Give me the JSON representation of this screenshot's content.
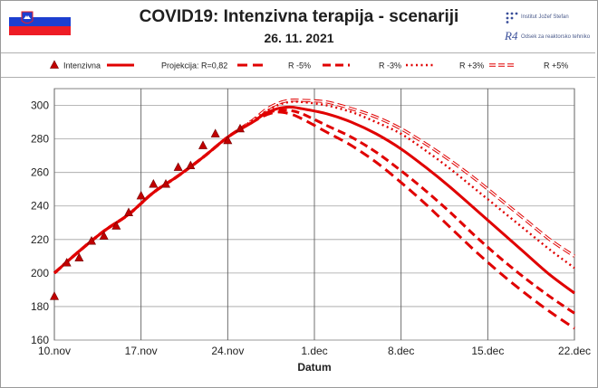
{
  "header": {
    "title": "COVID19: Intenzivna terapija - scenariji",
    "date": "26. 11. 2021",
    "logo_top": "Institut Jožef Stefan",
    "logo_bottom": "Odsek za reaktorsko tehniko",
    "logo_bottom_mark": "R4"
  },
  "colors": {
    "series": "#e00000",
    "marker": "#c00000",
    "marker_edge": "#700000",
    "grid": "#a0a0a0"
  },
  "chart_data": {
    "type": "line",
    "title": "COVID19: Intenzivna terapija - scenariji",
    "xlabel": "Datum",
    "ylabel": "",
    "xlim": [
      0,
      42
    ],
    "ylim": [
      160,
      310
    ],
    "yticks": [
      160,
      180,
      200,
      220,
      240,
      260,
      280,
      300
    ],
    "xticks": [
      {
        "x": 0,
        "label": "10.nov"
      },
      {
        "x": 7,
        "label": "17.nov"
      },
      {
        "x": 14,
        "label": "24.nov"
      },
      {
        "x": 21,
        "label": "1.dec"
      },
      {
        "x": 28,
        "label": "8.dec"
      },
      {
        "x": 35,
        "label": "15.dec"
      },
      {
        "x": 42,
        "label": "22.dec"
      }
    ],
    "legend": [
      {
        "key": "markers",
        "label": "Intenzivna"
      },
      {
        "key": "proj",
        "label": "Projekcija: R=0,82"
      },
      {
        "key": "m5",
        "label": "R -5%"
      },
      {
        "key": "m3",
        "label": "R -3%"
      },
      {
        "key": "p3",
        "label": "R +3%"
      },
      {
        "key": "p5",
        "label": "R +5%"
      }
    ],
    "markers": {
      "name": "Intenzivna",
      "x": [
        0,
        1,
        2,
        3,
        4,
        5,
        6,
        7,
        8,
        9,
        10,
        11,
        12,
        13,
        14,
        15
      ],
      "y": [
        186,
        206,
        209,
        219,
        222,
        228,
        236,
        246,
        253,
        253,
        263,
        264,
        276,
        283,
        279,
        286
      ]
    },
    "series": [
      {
        "key": "proj",
        "name": "Projekcija: R=0,82",
        "x": [
          0,
          2,
          4,
          6,
          8,
          10,
          12,
          14,
          16,
          17,
          18,
          19,
          20,
          22,
          24,
          26,
          28,
          30,
          32,
          34,
          36,
          38,
          40,
          42
        ],
        "y": [
          200,
          213,
          225,
          235,
          248,
          258,
          269,
          281,
          290,
          295,
          298,
          299,
          298,
          295,
          290,
          283,
          274,
          263,
          251,
          238,
          225,
          212,
          199,
          188
        ]
      },
      {
        "key": "m5",
        "name": "R -5%",
        "x": [
          0,
          2,
          4,
          6,
          8,
          10,
          12,
          14,
          16,
          17,
          18,
          19,
          20,
          22,
          24,
          26,
          28,
          30,
          32,
          34,
          36,
          38,
          40,
          42
        ],
        "y": [
          200,
          213,
          225,
          235,
          248,
          258,
          269,
          281,
          290,
          294,
          296,
          295,
          292,
          284,
          276,
          266,
          254,
          241,
          227,
          213,
          200,
          188,
          177,
          167
        ]
      },
      {
        "key": "m3",
        "name": "R -3%",
        "x": [
          0,
          2,
          4,
          6,
          8,
          10,
          12,
          14,
          16,
          17,
          18,
          19,
          20,
          22,
          24,
          26,
          28,
          30,
          32,
          34,
          36,
          38,
          40,
          42
        ],
        "y": [
          200,
          213,
          225,
          235,
          248,
          258,
          269,
          281,
          290,
          295,
          297,
          297,
          295,
          288,
          281,
          272,
          261,
          249,
          236,
          222,
          209,
          197,
          186,
          176
        ]
      },
      {
        "key": "p3",
        "name": "R +3%",
        "x": [
          0,
          2,
          4,
          6,
          8,
          10,
          12,
          14,
          16,
          17,
          18,
          19,
          20,
          22,
          24,
          26,
          28,
          30,
          32,
          34,
          36,
          38,
          40,
          42
        ],
        "y": [
          200,
          213,
          225,
          235,
          248,
          258,
          269,
          281,
          291,
          296,
          300,
          302,
          302,
          300,
          296,
          290,
          283,
          273,
          262,
          250,
          238,
          226,
          214,
          203
        ]
      },
      {
        "key": "p5",
        "name": "R +5%",
        "x": [
          0,
          2,
          4,
          6,
          8,
          10,
          12,
          14,
          16,
          17,
          18,
          19,
          20,
          22,
          24,
          26,
          28,
          30,
          32,
          34,
          36,
          38,
          40,
          42
        ],
        "y": [
          200,
          213,
          225,
          235,
          248,
          258,
          269,
          281,
          291,
          297,
          301,
          303,
          303,
          302,
          298,
          293,
          286,
          277,
          267,
          256,
          244,
          232,
          220,
          210
        ]
      }
    ]
  }
}
